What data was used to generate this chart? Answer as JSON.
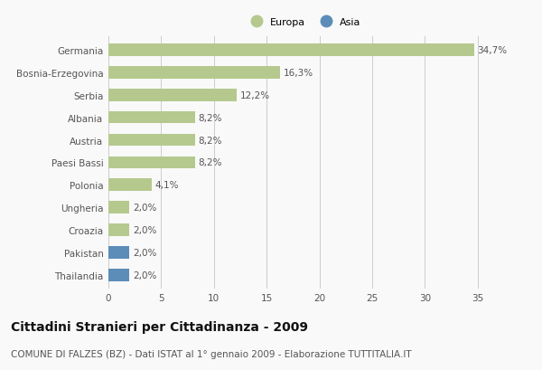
{
  "categories": [
    "Germania",
    "Bosnia-Erzegovina",
    "Serbia",
    "Albania",
    "Austria",
    "Paesi Bassi",
    "Polonia",
    "Ungheria",
    "Croazia",
    "Pakistan",
    "Thailandia"
  ],
  "values": [
    34.7,
    16.3,
    12.2,
    8.2,
    8.2,
    8.2,
    4.1,
    2.0,
    2.0,
    2.0,
    2.0
  ],
  "labels": [
    "34,7%",
    "16,3%",
    "12,2%",
    "8,2%",
    "8,2%",
    "8,2%",
    "4,1%",
    "2,0%",
    "2,0%",
    "2,0%",
    "2,0%"
  ],
  "colors": [
    "#b5c98e",
    "#b5c98e",
    "#b5c98e",
    "#b5c98e",
    "#b5c98e",
    "#b5c98e",
    "#b5c98e",
    "#b5c98e",
    "#b5c98e",
    "#5b8db8",
    "#5b8db8"
  ],
  "legend": [
    {
      "label": "Europa",
      "color": "#b5c98e"
    },
    {
      "label": "Asia",
      "color": "#5b8db8"
    }
  ],
  "xlim": [
    0,
    37
  ],
  "xticks": [
    0,
    5,
    10,
    15,
    20,
    25,
    30,
    35
  ],
  "title": "Cittadini Stranieri per Cittadinanza - 2009",
  "subtitle": "COMUNE DI FALZES (BZ) - Dati ISTAT al 1° gennaio 2009 - Elaborazione TUTTITALIA.IT",
  "background_color": "#f9f9f9",
  "bar_height": 0.55,
  "grid_color": "#cccccc",
  "label_fontsize": 7.5,
  "tick_fontsize": 7.5,
  "title_fontsize": 10,
  "subtitle_fontsize": 7.5
}
